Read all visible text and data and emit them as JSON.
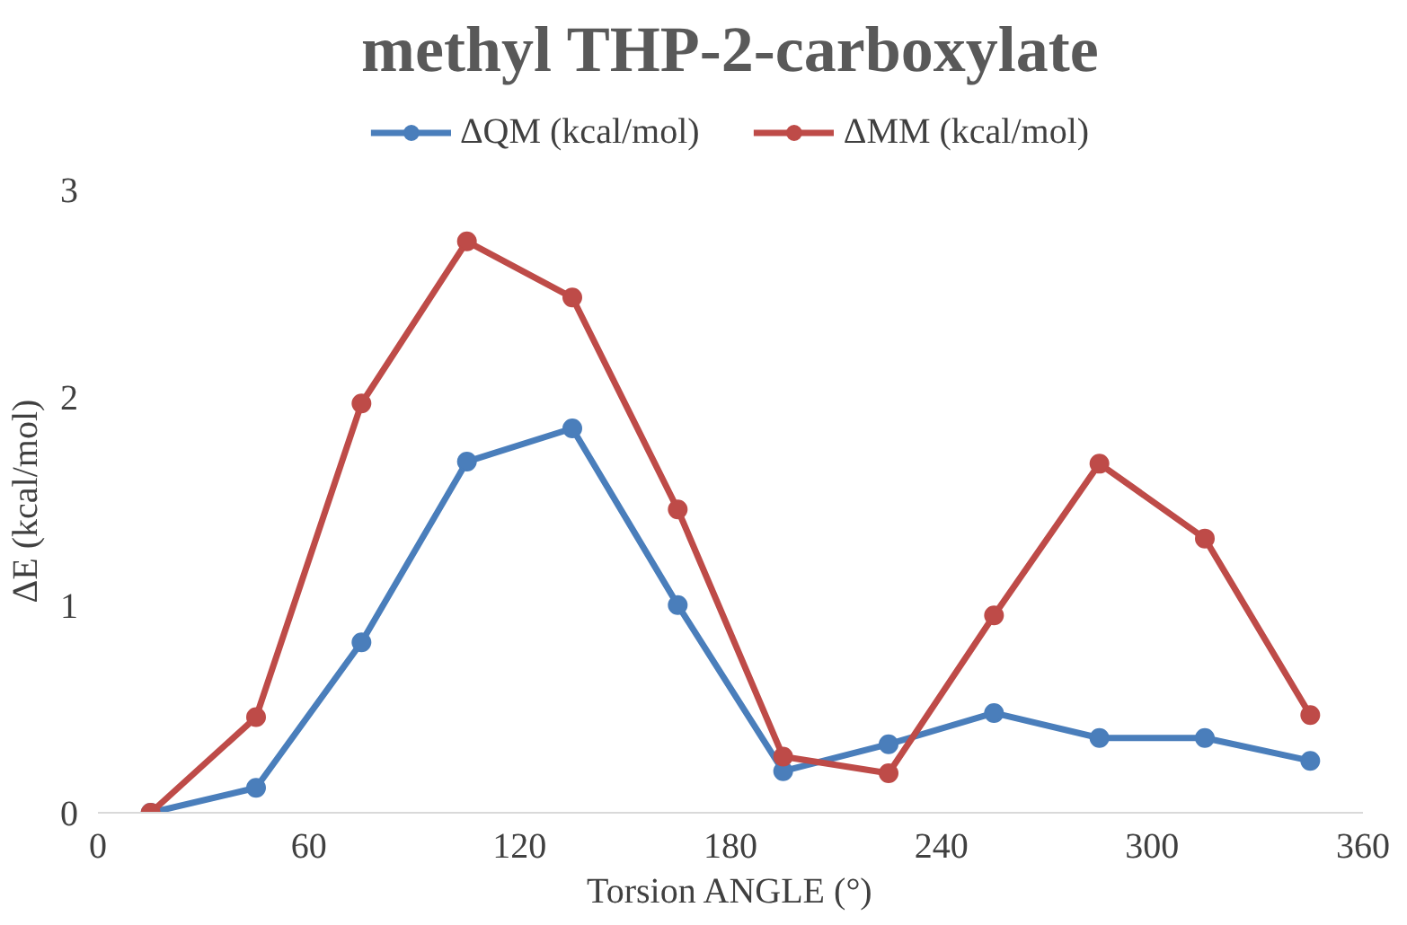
{
  "chart_data": {
    "type": "line",
    "title": "methyl THP-2-carboxylate",
    "xlabel": "Torsion ANGLE (°)",
    "ylabel": "ΔE (kcal/mol)",
    "x": [
      15,
      45,
      75,
      105,
      135,
      165,
      195,
      225,
      255,
      285,
      315,
      345
    ],
    "series": [
      {
        "name": "ΔQM (kcal/mol)",
        "color": "#4a7ebb",
        "values": [
          0,
          0.12,
          0.82,
          1.69,
          1.85,
          1.0,
          0.2,
          0.33,
          0.48,
          0.36,
          0.36,
          0.25
        ]
      },
      {
        "name": "ΔMM (kcal/mol)",
        "color": "#be4b48",
        "values": [
          0,
          0.46,
          1.97,
          2.75,
          2.48,
          1.46,
          0.27,
          0.19,
          0.95,
          1.68,
          1.32,
          0.47
        ]
      }
    ],
    "xlim": [
      0,
      360
    ],
    "xticks": [
      0,
      60,
      120,
      180,
      240,
      300,
      360
    ],
    "ylim": [
      0,
      3
    ],
    "yticks": [
      0,
      1,
      2,
      3
    ],
    "grid": false,
    "legend": "top",
    "marker": "circle",
    "line_style": "solid"
  }
}
